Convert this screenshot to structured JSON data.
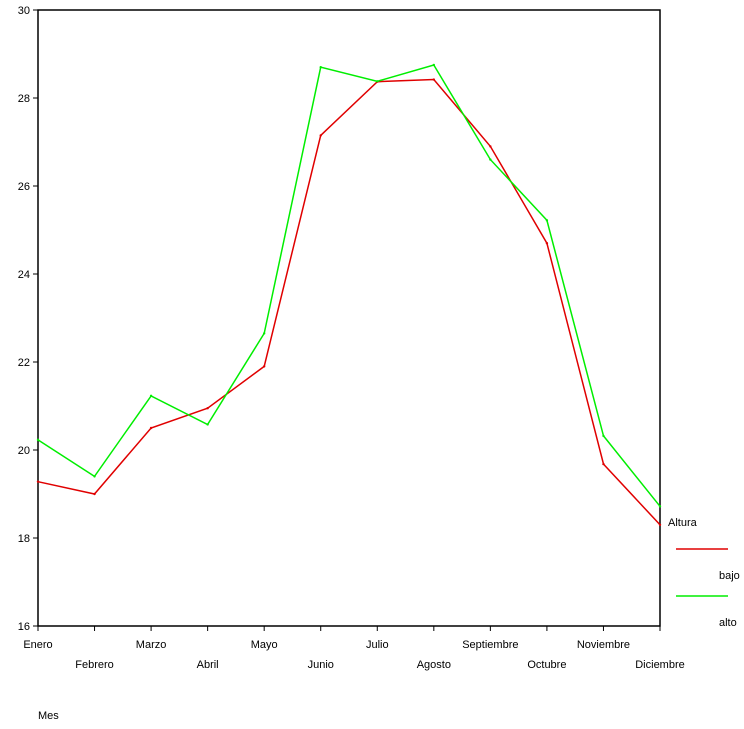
{
  "chart_data": {
    "type": "line",
    "title": "",
    "xlabel": "Mes",
    "ylabel": "",
    "categories": [
      "Enero",
      "Febrero",
      "Marzo",
      "Abril",
      "Mayo",
      "Junio",
      "Julio",
      "Agosto",
      "Septiembre",
      "Octubre",
      "Noviembre",
      "Diciembre"
    ],
    "ylim": [
      16,
      30
    ],
    "yticks": [
      16,
      18,
      20,
      22,
      24,
      26,
      28,
      30
    ],
    "grid": false,
    "legend": {
      "title": "Altura",
      "placement": "right"
    },
    "series": [
      {
        "name": "bajo",
        "color": "#e00000",
        "values": [
          19.28,
          19.0,
          20.5,
          20.95,
          21.9,
          27.15,
          28.37,
          28.42,
          26.9,
          24.7,
          19.68,
          18.3
        ]
      },
      {
        "name": "alto",
        "color": "#00ee00",
        "values": [
          20.23,
          19.4,
          21.23,
          20.58,
          22.65,
          28.7,
          28.38,
          28.75,
          26.6,
          25.22,
          20.32,
          18.72
        ]
      }
    ]
  }
}
